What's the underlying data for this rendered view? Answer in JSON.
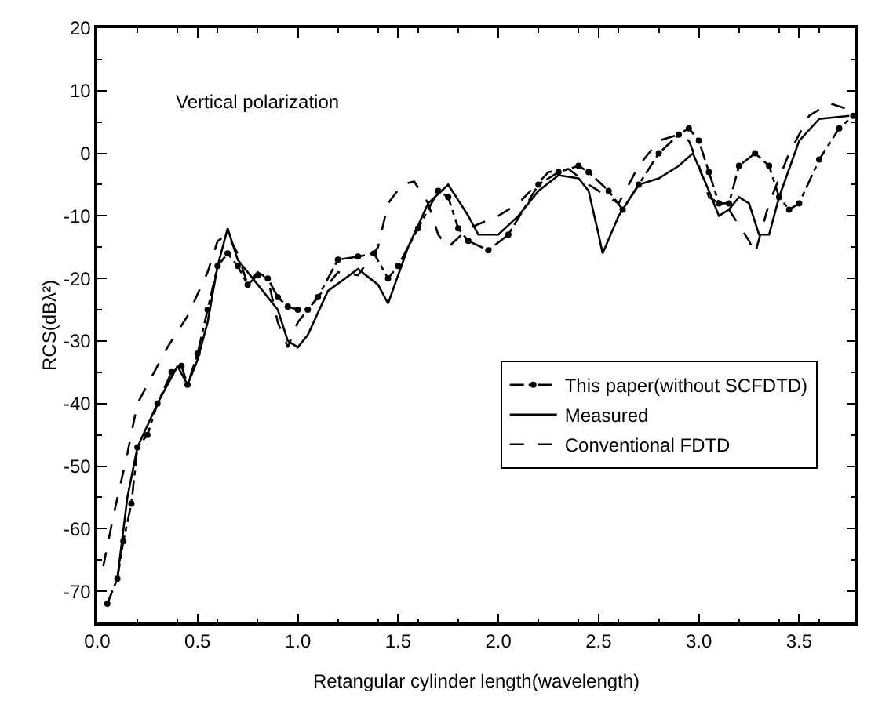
{
  "chart_data": {
    "type": "line",
    "xlabel": "Retangular cylinder length(wavelength)",
    "ylabel": "RCS(dBλ²)",
    "annotations": [
      "Vertical polarization"
    ],
    "xlim": [
      0,
      3.78
    ],
    "ylim": [
      -75,
      20
    ],
    "xticks": [
      {
        "value": 0,
        "label": "0.0"
      },
      0.5,
      {
        "value": 1,
        "label": "1.0"
      },
      1.5,
      {
        "value": 2,
        "label": "2.0"
      },
      2.5,
      {
        "value": 3,
        "label": "3.0"
      },
      3.5
    ],
    "yticks": [
      -70,
      -60,
      -50,
      -40,
      -30,
      -20,
      -10,
      0,
      10,
      20
    ],
    "legend": "right",
    "series": [
      {
        "name": "This paper(without SCFDTD)",
        "color": "#000000",
        "line_style": "dashdot",
        "marker": "circle",
        "x": [
          0.05,
          0.1,
          0.13,
          0.17,
          0.2,
          0.25,
          0.3,
          0.37,
          0.42,
          0.45,
          0.5,
          0.55,
          0.6,
          0.65,
          0.7,
          0.75,
          0.8,
          0.85,
          0.9,
          0.95,
          1.0,
          1.05,
          1.1,
          1.2,
          1.3,
          1.38,
          1.45,
          1.5,
          1.6,
          1.7,
          1.75,
          1.8,
          1.85,
          1.95,
          2.05,
          2.2,
          2.3,
          2.4,
          2.45,
          2.55,
          2.62,
          2.7,
          2.8,
          2.9,
          2.95,
          3.0,
          3.05,
          3.1,
          3.15,
          3.2,
          3.28,
          3.35,
          3.4,
          3.45,
          3.5,
          3.6,
          3.7,
          3.77
        ],
        "values": [
          -72,
          -68,
          -62,
          -56,
          -47,
          -45,
          -40,
          -35,
          -34,
          -37,
          -32,
          -25,
          -18,
          -16,
          -18,
          -21,
          -19.5,
          -20,
          -23,
          -24.5,
          -25,
          -25,
          -23,
          -17,
          -16.5,
          -16,
          -20,
          -18,
          -12,
          -6,
          -7,
          -12,
          -14,
          -15.5,
          -13,
          -5,
          -3,
          -2,
          -3,
          -6,
          -9,
          -5,
          0,
          3,
          4,
          2,
          -3,
          -8,
          -8,
          -2,
          0,
          -2,
          -7,
          -9,
          -8,
          -1,
          4,
          6
        ]
      },
      {
        "name": "Measured",
        "color": "#000000",
        "line_style": "solid",
        "marker": "none",
        "x": [
          0.1,
          0.15,
          0.2,
          0.3,
          0.4,
          0.45,
          0.5,
          0.55,
          0.6,
          0.65,
          0.7,
          0.8,
          0.9,
          0.95,
          1.0,
          1.05,
          1.15,
          1.3,
          1.4,
          1.45,
          1.55,
          1.65,
          1.75,
          1.85,
          1.9,
          2.0,
          2.1,
          2.2,
          2.3,
          2.4,
          2.45,
          2.5,
          2.52,
          2.6,
          2.7,
          2.8,
          2.9,
          2.97,
          3.05,
          3.1,
          3.15,
          3.2,
          3.25,
          3.3,
          3.35,
          3.4,
          3.5,
          3.6,
          3.75
        ],
        "values": [
          -68,
          -55,
          -47,
          -40,
          -34,
          -37,
          -33,
          -27,
          -18,
          -12,
          -17,
          -21,
          -25,
          -30,
          -31,
          -29,
          -22,
          -18.5,
          -21,
          -24,
          -15,
          -8,
          -5,
          -10,
          -13,
          -13,
          -10,
          -6,
          -3.5,
          -4,
          -6,
          -13,
          -16,
          -10,
          -5,
          -4,
          -2,
          0,
          -6,
          -10,
          -9,
          -7,
          -8,
          -13,
          -13,
          -7,
          2,
          5.5,
          6
        ]
      },
      {
        "name": "Conventional FDTD",
        "color": "#000000",
        "line_style": "dashed",
        "marker": "none",
        "x": [
          0.03,
          0.08,
          0.15,
          0.2,
          0.25,
          0.35,
          0.45,
          0.55,
          0.6,
          0.65,
          0.7,
          0.75,
          0.8,
          0.85,
          0.9,
          0.95,
          1.0,
          1.1,
          1.2,
          1.3,
          1.4,
          1.45,
          1.52,
          1.58,
          1.65,
          1.7,
          1.75,
          1.85,
          2.0,
          2.1,
          2.25,
          2.35,
          2.45,
          2.6,
          2.7,
          2.8,
          2.9,
          2.95,
          3.0,
          3.05,
          3.15,
          3.25,
          3.28,
          3.35,
          3.45,
          3.55,
          3.65,
          3.75
        ],
        "values": [
          -66,
          -58,
          -48,
          -40,
          -37,
          -31,
          -26,
          -19,
          -14,
          -13,
          -16,
          -21,
          -19,
          -20,
          -27,
          -31,
          -27,
          -23,
          -19,
          -19.5,
          -15,
          -8,
          -5,
          -4.5,
          -8,
          -13,
          -15,
          -12,
          -10,
          -8,
          -3,
          -2.5,
          -5,
          -8,
          -2,
          2,
          3,
          2,
          -2,
          -7,
          -9,
          -14,
          -16,
          -8,
          0,
          6,
          8,
          7
        ]
      }
    ]
  }
}
